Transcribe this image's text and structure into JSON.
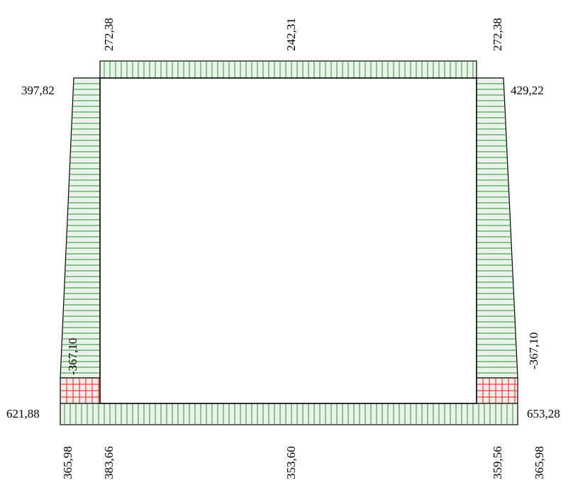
{
  "diagram": {
    "labels": {
      "top_left_vertical": "272,38",
      "top_mid_vertical": "242,31",
      "top_right_vertical": "272,38",
      "left_top": "397,82",
      "right_top": "429,22",
      "left_mid_vertical": "-367,10",
      "right_mid_vertical": "-367,10",
      "left_bottom": "621,88",
      "right_bottom": "653,28",
      "bottom_1": "365,98",
      "bottom_2": "383,66",
      "bottom_3": "353,60",
      "bottom_4": "359,56",
      "bottom_5": "365,98"
    },
    "colors": {
      "fill": "#e9f5e9",
      "hatch_green": "#2e8b2e",
      "hatch_red": "#e0201a",
      "frame": "#000000"
    }
  }
}
